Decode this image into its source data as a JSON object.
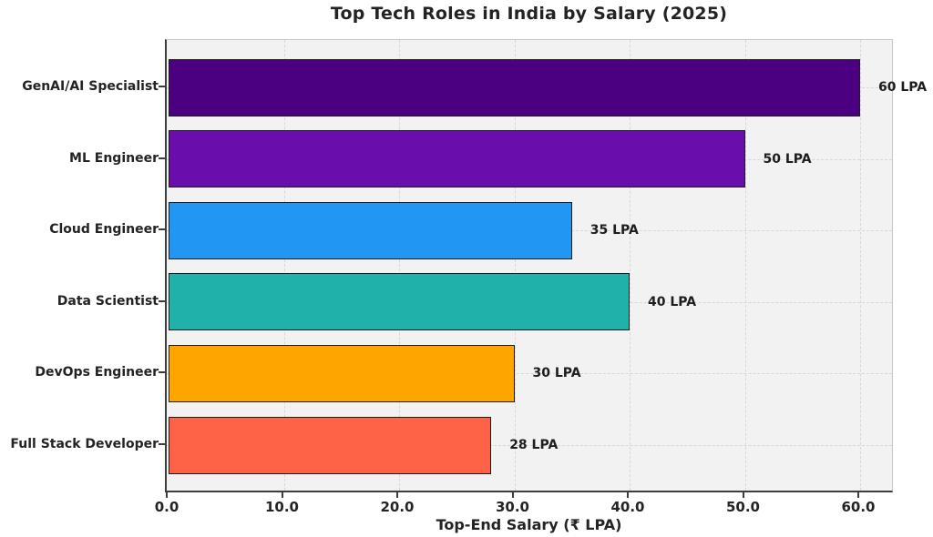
{
  "chart_data": {
    "type": "bar",
    "orientation": "horizontal",
    "title": "Top Tech Roles in India by Salary (2025)",
    "xlabel": "Top-End Salary (₹ LPA)",
    "categories": [
      "GenAI/AI Specialist",
      "ML Engineer",
      "Cloud Engineer",
      "Data Scientist",
      "DevOps Engineer",
      "Full Stack Developer"
    ],
    "values": [
      60,
      50,
      35,
      40,
      30,
      28
    ],
    "bar_value_labels": [
      "60 LPA",
      "50 LPA",
      "35 LPA",
      "40 LPA",
      "30 LPA",
      "28 LPA"
    ],
    "bar_colors": [
      "#4B0082",
      "#6A0DAD",
      "#2196F3",
      "#20B2AA",
      "#FFA500",
      "#FF6347"
    ],
    "xlim": [
      0,
      63
    ],
    "xticks": [
      0,
      10,
      20,
      30,
      40,
      50,
      60
    ],
    "xtick_labels": [
      "0.0",
      "10.0",
      "20.0",
      "30.0",
      "40.0",
      "50.0",
      "60.0"
    ],
    "grid": true,
    "grid_style": "dashed",
    "legend": "none",
    "plot_background": "#f2f2f2",
    "figure_background": "#ffffff"
  }
}
